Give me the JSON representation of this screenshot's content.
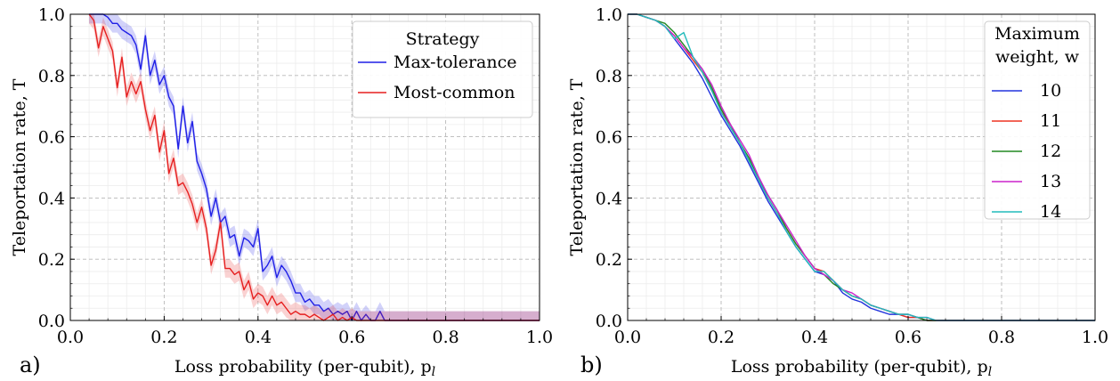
{
  "figure": {
    "panel_labels": [
      "a)",
      "b)"
    ]
  },
  "chart_data": [
    {
      "type": "line",
      "panel": "a)",
      "xlabel": "Loss probability (per-qubit), p",
      "xlabel_sub": "l",
      "ylabel": "Teleportation rate, T",
      "xlim": [
        0.0,
        1.0
      ],
      "ylim": [
        0.0,
        1.0
      ],
      "xticks": [
        "0.0",
        "0.2",
        "0.4",
        "0.6",
        "0.8",
        "1.0"
      ],
      "yticks": [
        "0.0",
        "0.2",
        "0.4",
        "0.6",
        "0.8",
        "1.0"
      ],
      "grid": true,
      "legend_title": "Strategy",
      "legend_position": "top-right",
      "x": [
        0.04,
        0.05,
        0.06,
        0.07,
        0.08,
        0.09,
        0.1,
        0.11,
        0.12,
        0.13,
        0.14,
        0.15,
        0.16,
        0.17,
        0.18,
        0.19,
        0.2,
        0.21,
        0.22,
        0.23,
        0.24,
        0.25,
        0.26,
        0.27,
        0.28,
        0.29,
        0.3,
        0.31,
        0.32,
        0.33,
        0.34,
        0.35,
        0.36,
        0.37,
        0.38,
        0.39,
        0.4,
        0.41,
        0.42,
        0.43,
        0.44,
        0.45,
        0.46,
        0.47,
        0.48,
        0.49,
        0.5,
        0.51,
        0.52,
        0.53,
        0.54,
        0.55,
        0.56,
        0.57,
        0.58,
        0.59,
        0.6,
        0.61,
        0.62,
        0.63,
        0.64,
        0.65,
        0.66,
        0.67,
        0.68,
        1.0
      ],
      "series": [
        {
          "name": "Max-tolerance",
          "color": "#1f1fe6",
          "band": 0.03,
          "values": [
            1.0,
            1.0,
            1.0,
            1.0,
            0.99,
            0.97,
            0.97,
            0.95,
            0.94,
            0.93,
            0.9,
            0.82,
            0.93,
            0.8,
            0.85,
            0.77,
            0.8,
            0.73,
            0.7,
            0.56,
            0.7,
            0.58,
            0.65,
            0.52,
            0.48,
            0.43,
            0.34,
            0.4,
            0.32,
            0.34,
            0.27,
            0.28,
            0.21,
            0.27,
            0.26,
            0.24,
            0.3,
            0.16,
            0.18,
            0.21,
            0.14,
            0.18,
            0.16,
            0.13,
            0.09,
            0.09,
            0.06,
            0.07,
            0.05,
            0.05,
            0.03,
            0.04,
            0.02,
            0.03,
            0.02,
            0.03,
            0.0,
            0.03,
            0.0,
            0.02,
            0.0,
            0.0,
            0.03,
            0.0,
            0.0,
            0.0
          ]
        },
        {
          "name": "Most-common",
          "color": "#e61f1f",
          "band": 0.03,
          "values": [
            1.0,
            0.98,
            0.89,
            0.96,
            0.92,
            0.88,
            0.76,
            0.86,
            0.73,
            0.78,
            0.74,
            0.78,
            0.69,
            0.62,
            0.67,
            0.55,
            0.62,
            0.48,
            0.53,
            0.44,
            0.45,
            0.42,
            0.38,
            0.32,
            0.37,
            0.3,
            0.18,
            0.23,
            0.32,
            0.17,
            0.17,
            0.15,
            0.16,
            0.1,
            0.13,
            0.07,
            0.09,
            0.08,
            0.05,
            0.08,
            0.05,
            0.06,
            0.04,
            0.02,
            0.03,
            0.02,
            0.02,
            0.01,
            0.02,
            0.01,
            0.0,
            0.01,
            0.02,
            0.0,
            0.01,
            0.0,
            0.01,
            0.0,
            0.0,
            0.0,
            0.0,
            0.0,
            0.0,
            0.0,
            0.0,
            0.0
          ]
        }
      ]
    },
    {
      "type": "line",
      "panel": "b)",
      "xlabel": "Loss probability (per-qubit), p",
      "xlabel_sub": "l",
      "ylabel": "Teleportation rate, T",
      "xlim": [
        0.0,
        1.0
      ],
      "ylim": [
        0.0,
        1.0
      ],
      "xticks": [
        "0.0",
        "0.2",
        "0.4",
        "0.6",
        "0.8",
        "1.0"
      ],
      "yticks": [
        "0.0",
        "0.2",
        "0.4",
        "0.6",
        "0.8",
        "1.0"
      ],
      "grid": true,
      "legend_title": [
        "Maximum",
        "weight, w"
      ],
      "legend_position": "top-right",
      "x": [
        0.0,
        0.02,
        0.04,
        0.06,
        0.08,
        0.1,
        0.12,
        0.14,
        0.16,
        0.18,
        0.2,
        0.22,
        0.24,
        0.26,
        0.28,
        0.3,
        0.32,
        0.34,
        0.36,
        0.38,
        0.4,
        0.42,
        0.44,
        0.46,
        0.48,
        0.5,
        0.52,
        0.54,
        0.56,
        0.58,
        0.6,
        0.62,
        0.64,
        0.66,
        0.68,
        0.7,
        0.75,
        0.8,
        1.0
      ],
      "series": [
        {
          "name": "10",
          "color": "#2233dd",
          "values": [
            1.0,
            1.0,
            0.99,
            0.98,
            0.96,
            0.92,
            0.88,
            0.84,
            0.79,
            0.73,
            0.67,
            0.62,
            0.57,
            0.51,
            0.45,
            0.39,
            0.34,
            0.29,
            0.24,
            0.2,
            0.16,
            0.15,
            0.13,
            0.09,
            0.07,
            0.06,
            0.04,
            0.03,
            0.02,
            0.02,
            0.01,
            0.01,
            0.0,
            0.0,
            0.0,
            0.0,
            0.0,
            0.0,
            0.0
          ]
        },
        {
          "name": "11",
          "color": "#ee3322",
          "values": [
            1.0,
            1.0,
            0.99,
            0.98,
            0.96,
            0.93,
            0.89,
            0.85,
            0.81,
            0.75,
            0.69,
            0.63,
            0.58,
            0.52,
            0.46,
            0.4,
            0.35,
            0.3,
            0.25,
            0.21,
            0.17,
            0.16,
            0.13,
            0.1,
            0.08,
            0.07,
            0.05,
            0.04,
            0.03,
            0.02,
            0.01,
            0.01,
            0.0,
            0.0,
            0.0,
            0.0,
            0.0,
            0.0,
            0.0
          ]
        },
        {
          "name": "12",
          "color": "#228822",
          "values": [
            1.0,
            1.0,
            0.99,
            0.98,
            0.97,
            0.94,
            0.9,
            0.86,
            0.82,
            0.76,
            0.69,
            0.64,
            0.58,
            0.53,
            0.46,
            0.41,
            0.36,
            0.3,
            0.25,
            0.21,
            0.17,
            0.15,
            0.12,
            0.1,
            0.08,
            0.07,
            0.05,
            0.04,
            0.03,
            0.02,
            0.02,
            0.01,
            0.0,
            0.0,
            0.0,
            0.0,
            0.0,
            0.0,
            0.0
          ]
        },
        {
          "name": "13",
          "color": "#cc22cc",
          "values": [
            1.0,
            1.0,
            0.99,
            0.98,
            0.96,
            0.93,
            0.89,
            0.86,
            0.82,
            0.77,
            0.7,
            0.64,
            0.59,
            0.54,
            0.47,
            0.41,
            0.36,
            0.31,
            0.26,
            0.21,
            0.17,
            0.15,
            0.13,
            0.1,
            0.09,
            0.07,
            0.05,
            0.04,
            0.03,
            0.02,
            0.02,
            0.01,
            0.01,
            0.0,
            0.0,
            0.0,
            0.0,
            0.0,
            0.0
          ]
        },
        {
          "name": "14",
          "color": "#22bbbb",
          "values": [
            1.0,
            1.0,
            0.99,
            0.98,
            0.96,
            0.92,
            0.94,
            0.86,
            0.81,
            0.75,
            0.68,
            0.63,
            0.58,
            0.52,
            0.46,
            0.4,
            0.35,
            0.29,
            0.24,
            0.2,
            0.16,
            0.16,
            0.13,
            0.1,
            0.08,
            0.07,
            0.05,
            0.04,
            0.03,
            0.02,
            0.02,
            0.01,
            0.01,
            0.0,
            0.0,
            0.0,
            0.0,
            0.0,
            0.0
          ]
        }
      ]
    }
  ]
}
